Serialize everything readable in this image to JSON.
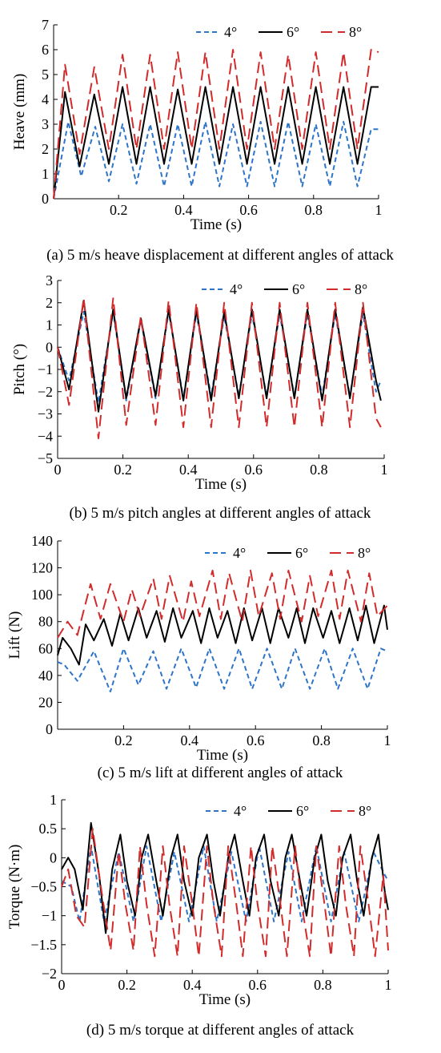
{
  "chart_data": [
    {
      "type": "line",
      "id": "a",
      "caption": "(a) 5 m/s heave displacement at different angles of attack",
      "xlabel": "Time (s)",
      "ylabel": "Heave (mm)",
      "xlim": [
        0,
        1
      ],
      "ylim": [
        0,
        7
      ],
      "xticks": [
        0.2,
        0.4,
        0.6,
        0.8,
        1
      ],
      "xtick_labels": [
        "0.2",
        "0.4",
        "0.6",
        "0.8",
        "1"
      ],
      "yticks": [
        0,
        1,
        2,
        3,
        4,
        5,
        6,
        7
      ],
      "ytick_labels": [
        "0",
        "1",
        "2",
        "3",
        "4",
        "5",
        "6",
        "7"
      ],
      "legend": "top-right",
      "grid": false,
      "series": [
        {
          "name": "4°",
          "color": "#2e75c8",
          "dash": "short",
          "x": [
            0,
            0.045,
            0.085,
            0.128,
            0.17,
            0.212,
            0.255,
            0.297,
            0.34,
            0.382,
            0.425,
            0.467,
            0.51,
            0.552,
            0.595,
            0.637,
            0.68,
            0.722,
            0.765,
            0.807,
            0.85,
            0.892,
            0.935,
            0.977,
            1.0
          ],
          "y": [
            0,
            3.1,
            0.9,
            2.9,
            0.7,
            3.0,
            0.6,
            3.0,
            0.5,
            3.0,
            0.5,
            3.1,
            0.5,
            3.0,
            0.5,
            3.1,
            0.5,
            3.1,
            0.5,
            3.0,
            0.5,
            3.1,
            0.5,
            2.8,
            2.8
          ]
        },
        {
          "name": "6°",
          "color": "#000000",
          "dash": "solid",
          "x": [
            0,
            0.035,
            0.08,
            0.125,
            0.17,
            0.212,
            0.255,
            0.297,
            0.34,
            0.382,
            0.425,
            0.467,
            0.51,
            0.552,
            0.595,
            0.637,
            0.68,
            0.722,
            0.765,
            0.807,
            0.85,
            0.892,
            0.935,
            0.977,
            1.0
          ],
          "y": [
            0,
            4.3,
            1.3,
            4.2,
            1.4,
            4.5,
            1.4,
            4.5,
            1.4,
            4.4,
            1.4,
            4.5,
            1.4,
            4.5,
            1.4,
            4.5,
            1.4,
            4.5,
            1.4,
            4.5,
            1.4,
            4.5,
            1.4,
            4.5,
            4.5
          ]
        },
        {
          "name": "8°",
          "color": "#d22b2b",
          "dash": "long",
          "x": [
            0,
            0.035,
            0.08,
            0.125,
            0.17,
            0.212,
            0.255,
            0.297,
            0.34,
            0.382,
            0.425,
            0.467,
            0.51,
            0.552,
            0.595,
            0.637,
            0.68,
            0.722,
            0.765,
            0.807,
            0.85,
            0.892,
            0.935,
            0.977,
            1.0
          ],
          "y": [
            0,
            5.4,
            1.8,
            5.3,
            2.0,
            5.8,
            2.0,
            5.8,
            2.0,
            5.9,
            2.0,
            5.9,
            2.0,
            6.0,
            2.0,
            5.9,
            2.0,
            5.8,
            2.0,
            5.9,
            2.0,
            5.9,
            2.0,
            6.0,
            5.9
          ]
        }
      ]
    },
    {
      "type": "line",
      "id": "b",
      "caption": "(b) 5 m/s pitch angles at different angles of attack",
      "xlabel": "Time (s)",
      "ylabel": "Pitch (°)",
      "xlim": [
        0,
        1
      ],
      "ylim": [
        -5,
        3
      ],
      "xticks": [
        0,
        0.2,
        0.4,
        0.6,
        0.8,
        1
      ],
      "xtick_labels": [
        "0",
        "0.2",
        "0.4",
        "0.6",
        "0.8",
        "1"
      ],
      "yticks": [
        -5,
        -4,
        -3,
        -2,
        -1,
        0,
        1,
        2,
        3
      ],
      "ytick_labels": [
        "−5",
        "−4",
        "−3",
        "−2",
        "−1",
        "0",
        "1",
        "2",
        "3"
      ],
      "legend": "top-right",
      "grid": false,
      "series": [
        {
          "name": "4°",
          "color": "#2e75c8",
          "dash": "short",
          "x": [
            0,
            0.035,
            0.08,
            0.125,
            0.17,
            0.21,
            0.255,
            0.3,
            0.34,
            0.385,
            0.425,
            0.47,
            0.51,
            0.555,
            0.595,
            0.64,
            0.68,
            0.725,
            0.765,
            0.81,
            0.85,
            0.895,
            0.935,
            0.975,
            0.99
          ],
          "y": [
            0,
            -1.5,
            1.6,
            -2.5,
            1.6,
            -2.4,
            1.2,
            -2.3,
            1.6,
            -2.3,
            1.5,
            -2.2,
            1.4,
            -2.2,
            1.5,
            -2.2,
            1.5,
            -2.2,
            1.5,
            -2.2,
            1.5,
            -2.2,
            1.5,
            -2.0,
            -1.5
          ]
        },
        {
          "name": "6°",
          "color": "#000000",
          "dash": "solid",
          "x": [
            0,
            0.035,
            0.08,
            0.125,
            0.17,
            0.21,
            0.255,
            0.3,
            0.34,
            0.385,
            0.425,
            0.47,
            0.51,
            0.555,
            0.595,
            0.64,
            0.68,
            0.725,
            0.765,
            0.81,
            0.85,
            0.895,
            0.935,
            0.975,
            0.99
          ],
          "y": [
            0,
            -1.9,
            2.1,
            -2.9,
            1.7,
            -2.3,
            1.3,
            -2.2,
            1.7,
            -2.4,
            1.7,
            -2.4,
            1.6,
            -2.3,
            1.7,
            -2.3,
            1.7,
            -2.3,
            1.7,
            -2.4,
            1.7,
            -2.3,
            1.8,
            -1.5,
            -2.4
          ]
        },
        {
          "name": "8°",
          "color": "#d22b2b",
          "dash": "long",
          "x": [
            0,
            0.035,
            0.08,
            0.125,
            0.17,
            0.21,
            0.255,
            0.3,
            0.34,
            0.385,
            0.425,
            0.47,
            0.51,
            0.555,
            0.595,
            0.64,
            0.68,
            0.725,
            0.765,
            0.81,
            0.85,
            0.895,
            0.935,
            0.975,
            0.99
          ],
          "y": [
            0,
            -2.6,
            2.2,
            -4.1,
            2.2,
            -3.5,
            1.4,
            -3.5,
            2.1,
            -3.6,
            2.0,
            -3.6,
            2.0,
            -3.6,
            2.0,
            -3.6,
            2.0,
            -3.6,
            2.0,
            -3.6,
            2.0,
            -3.6,
            2.0,
            -3.2,
            -3.6
          ]
        }
      ]
    },
    {
      "type": "line",
      "id": "c",
      "caption": "(c) 5 m/s lift at different angles of attack",
      "xlabel": "Time (s)",
      "ylabel": "Lift (N)",
      "xlim": [
        0,
        1
      ],
      "ylim": [
        0,
        140
      ],
      "xticks": [
        0.2,
        0.4,
        0.6,
        0.8,
        1
      ],
      "xtick_labels": [
        "0.2",
        "0.4",
        "0.6",
        "0.8",
        "1"
      ],
      "yticks": [
        0,
        20,
        40,
        60,
        80,
        100,
        120,
        140
      ],
      "ytick_labels": [
        "0",
        "20",
        "40",
        "60",
        "80",
        "100",
        "120",
        "140"
      ],
      "legend": "top-right",
      "grid": false,
      "series": [
        {
          "name": "4°",
          "color": "#2e75c8",
          "dash": "short",
          "x": [
            0,
            0.02,
            0.06,
            0.11,
            0.16,
            0.2,
            0.245,
            0.29,
            0.33,
            0.375,
            0.42,
            0.46,
            0.505,
            0.55,
            0.59,
            0.635,
            0.68,
            0.72,
            0.765,
            0.81,
            0.85,
            0.895,
            0.94,
            0.98,
            1.0
          ],
          "y": [
            50,
            48,
            36,
            58,
            28,
            60,
            33,
            58,
            30,
            60,
            31,
            60,
            30,
            60,
            30,
            60,
            30,
            60,
            30,
            60,
            30,
            60,
            30,
            60,
            58
          ]
        },
        {
          "name": "6°",
          "color": "#000000",
          "dash": "solid",
          "x": [
            0,
            0.015,
            0.04,
            0.065,
            0.085,
            0.11,
            0.14,
            0.165,
            0.19,
            0.215,
            0.245,
            0.27,
            0.3,
            0.325,
            0.35,
            0.375,
            0.41,
            0.435,
            0.46,
            0.485,
            0.515,
            0.54,
            0.565,
            0.59,
            0.62,
            0.645,
            0.67,
            0.7,
            0.725,
            0.75,
            0.775,
            0.805,
            0.83,
            0.855,
            0.885,
            0.91,
            0.935,
            0.96,
            0.99,
            1.0
          ],
          "y": [
            55,
            68,
            60,
            48,
            78,
            66,
            82,
            62,
            86,
            66,
            90,
            68,
            88,
            65,
            90,
            68,
            88,
            64,
            90,
            68,
            88,
            64,
            90,
            66,
            90,
            64,
            90,
            68,
            90,
            64,
            90,
            68,
            88,
            64,
            90,
            66,
            92,
            64,
            92,
            74
          ]
        },
        {
          "name": "8°",
          "color": "#d22b2b",
          "dash": "long",
          "x": [
            0,
            0.03,
            0.06,
            0.1,
            0.13,
            0.16,
            0.2,
            0.225,
            0.25,
            0.29,
            0.315,
            0.34,
            0.38,
            0.405,
            0.43,
            0.47,
            0.495,
            0.52,
            0.56,
            0.585,
            0.61,
            0.65,
            0.675,
            0.7,
            0.74,
            0.765,
            0.79,
            0.83,
            0.855,
            0.88,
            0.92,
            0.945,
            0.97,
            1.0
          ],
          "y": [
            68,
            80,
            70,
            108,
            82,
            108,
            80,
            104,
            84,
            112,
            82,
            114,
            80,
            110,
            84,
            118,
            82,
            116,
            80,
            118,
            84,
            116,
            82,
            118,
            80,
            114,
            84,
            118,
            82,
            118,
            80,
            116,
            84,
            92
          ]
        }
      ]
    },
    {
      "type": "line",
      "id": "d",
      "caption": "(d) 5 m/s torque at different angles of attack",
      "xlabel": "Time (s)",
      "ylabel": "Torque (N·m)",
      "xlim": [
        0,
        1
      ],
      "ylim": [
        -2,
        1
      ],
      "xticks": [
        0,
        0.2,
        0.4,
        0.6,
        0.8,
        1
      ],
      "xtick_labels": [
        "0",
        "0.2",
        "0.4",
        "0.6",
        "0.8",
        "1"
      ],
      "yticks": [
        -2,
        -1.5,
        -1,
        -0.5,
        0,
        0.5,
        1
      ],
      "ytick_labels": [
        "−2",
        "−1.5",
        "−1",
        "−0.5",
        "0",
        "0.5",
        "1"
      ],
      "legend": "top-right",
      "grid": false,
      "series": [
        {
          "name": "4°",
          "color": "#2e75c8",
          "dash": "short",
          "x": [
            0,
            0.03,
            0.055,
            0.09,
            0.13,
            0.175,
            0.22,
            0.26,
            0.305,
            0.345,
            0.39,
            0.435,
            0.475,
            0.52,
            0.565,
            0.605,
            0.65,
            0.695,
            0.735,
            0.78,
            0.825,
            0.865,
            0.91,
            0.955,
            0.99,
            1.0
          ],
          "y": [
            -0.4,
            -0.5,
            -1.1,
            0.2,
            -1.1,
            0.1,
            -1.1,
            0.2,
            -1.1,
            0.1,
            -1.1,
            0.2,
            -1.1,
            0.1,
            -1.1,
            0.2,
            -1.1,
            0.1,
            -1.1,
            0.2,
            -1.1,
            0.1,
            -1.1,
            0.1,
            -0.3,
            -0.4
          ]
        },
        {
          "name": "6°",
          "color": "#000000",
          "dash": "solid",
          "x": [
            0,
            0.02,
            0.04,
            0.065,
            0.09,
            0.115,
            0.135,
            0.155,
            0.18,
            0.2,
            0.225,
            0.245,
            0.265,
            0.29,
            0.31,
            0.335,
            0.355,
            0.375,
            0.4,
            0.42,
            0.445,
            0.465,
            0.485,
            0.51,
            0.53,
            0.555,
            0.575,
            0.595,
            0.62,
            0.64,
            0.665,
            0.685,
            0.705,
            0.73,
            0.75,
            0.775,
            0.795,
            0.815,
            0.84,
            0.86,
            0.885,
            0.905,
            0.925,
            0.95,
            0.97,
            0.99,
            1.0
          ],
          "y": [
            -0.2,
            0.0,
            -0.2,
            -0.9,
            0.6,
            -0.3,
            -1.3,
            -0.2,
            0.4,
            -0.4,
            -1.0,
            0.0,
            0.4,
            -0.4,
            -1.0,
            0.0,
            0.4,
            -0.4,
            -1.0,
            0.0,
            0.4,
            -0.4,
            -1.0,
            0.0,
            0.4,
            -0.4,
            -1.0,
            0.0,
            0.4,
            -0.4,
            -1.0,
            0.0,
            0.4,
            -0.4,
            -1.0,
            0.0,
            0.4,
            -0.4,
            -1.0,
            0.0,
            0.4,
            -0.4,
            -1.0,
            0.0,
            0.4,
            -0.6,
            -0.9
          ]
        },
        {
          "name": "8°",
          "color": "#d22b2b",
          "dash": "long",
          "x": [
            0,
            0.02,
            0.045,
            0.07,
            0.095,
            0.12,
            0.15,
            0.175,
            0.195,
            0.22,
            0.24,
            0.26,
            0.285,
            0.31,
            0.33,
            0.355,
            0.375,
            0.4,
            0.42,
            0.445,
            0.465,
            0.49,
            0.51,
            0.535,
            0.555,
            0.58,
            0.6,
            0.625,
            0.645,
            0.67,
            0.69,
            0.715,
            0.735,
            0.76,
            0.78,
            0.805,
            0.825,
            0.85,
            0.87,
            0.895,
            0.915,
            0.94,
            0.96,
            0.985,
            1.0
          ],
          "y": [
            -0.5,
            -0.2,
            -1.0,
            -1.2,
            0.5,
            -0.5,
            -1.6,
            0.1,
            -0.8,
            -1.6,
            0.2,
            -0.8,
            -1.7,
            0.2,
            -0.8,
            -1.7,
            0.2,
            -0.8,
            -1.7,
            0.2,
            -0.8,
            -1.7,
            0.2,
            -0.8,
            -1.7,
            0.2,
            -0.8,
            -1.7,
            0.2,
            -0.8,
            -1.7,
            0.2,
            -0.8,
            -1.7,
            0.2,
            -0.8,
            -1.7,
            0.2,
            -0.8,
            -1.7,
            0.2,
            -0.8,
            -1.7,
            -0.3,
            -1.6
          ]
        }
      ]
    }
  ]
}
